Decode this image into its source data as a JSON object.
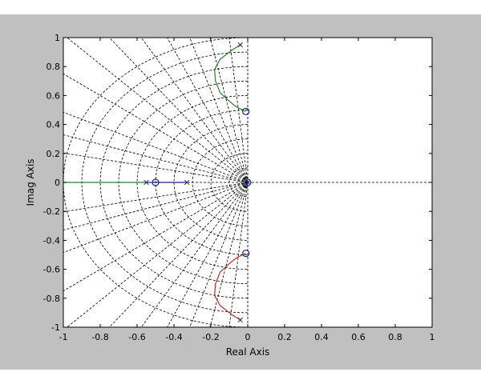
{
  "chart_data": {
    "type": "root-locus",
    "xlabel": "Real Axis",
    "ylabel": "Imag Axis",
    "xlim": [
      -1,
      1
    ],
    "ylim": [
      -1,
      1
    ],
    "x_ticks": [
      "-1",
      "-0.8",
      "-0.6",
      "-0.4",
      "-0.2",
      "0",
      "0.2",
      "0.4",
      "0.6",
      "0.8",
      "1"
    ],
    "y_ticks": [
      "-1",
      "-0.8",
      "-0.6",
      "-0.4",
      "-0.2",
      "0",
      "0.2",
      "0.4",
      "0.6",
      "0.8",
      "1"
    ],
    "grid": {
      "type": "s-plane",
      "damping_ratios": [
        0.1,
        0.2,
        0.3,
        0.4,
        0.5,
        0.6,
        0.7,
        0.8,
        0.9,
        0.95,
        0.98
      ],
      "natural_frequencies": [
        0.1,
        0.2,
        0.3,
        0.4,
        0.5,
        0.6,
        0.7,
        0.8,
        0.9,
        1.0
      ]
    },
    "poles": [
      {
        "x": -0.55,
        "y": 0
      },
      {
        "x": -0.33,
        "y": 0
      },
      {
        "x": -0.04,
        "y": 0.95
      },
      {
        "x": -0.04,
        "y": -0.95
      },
      {
        "x": 0,
        "y": 0
      }
    ],
    "zeros": [
      {
        "x": -0.5,
        "y": 0
      },
      {
        "x": -0.01,
        "y": 0.49
      },
      {
        "x": -0.01,
        "y": -0.49
      },
      {
        "x": 0,
        "y": 0
      }
    ],
    "series": [
      {
        "color": "#2e7d32",
        "points": [
          [
            -1,
            0
          ],
          [
            -0.55,
            0
          ]
        ]
      },
      {
        "color": "#1a237e",
        "points": [
          [
            -0.55,
            0
          ],
          [
            -0.5,
            0
          ]
        ]
      },
      {
        "color": "#1a237e",
        "points": [
          [
            -0.33,
            0
          ],
          [
            -0.5,
            0
          ]
        ]
      },
      {
        "color": "#2e7d32",
        "points": [
          [
            -0.04,
            0.95
          ],
          [
            -0.09,
            0.91
          ],
          [
            -0.15,
            0.85
          ],
          [
            -0.18,
            0.78
          ],
          [
            -0.175,
            0.7
          ],
          [
            -0.15,
            0.62
          ],
          [
            -0.1,
            0.56
          ],
          [
            -0.06,
            0.52
          ],
          [
            -0.01,
            0.49
          ]
        ]
      },
      {
        "color": "#c62828",
        "points": [
          [
            -0.04,
            -0.95
          ],
          [
            -0.09,
            -0.91
          ],
          [
            -0.15,
            -0.85
          ],
          [
            -0.18,
            -0.78
          ],
          [
            -0.175,
            -0.7
          ],
          [
            -0.15,
            -0.62
          ],
          [
            -0.1,
            -0.56
          ],
          [
            -0.06,
            -0.52
          ],
          [
            -0.01,
            -0.49
          ]
        ]
      }
    ]
  }
}
